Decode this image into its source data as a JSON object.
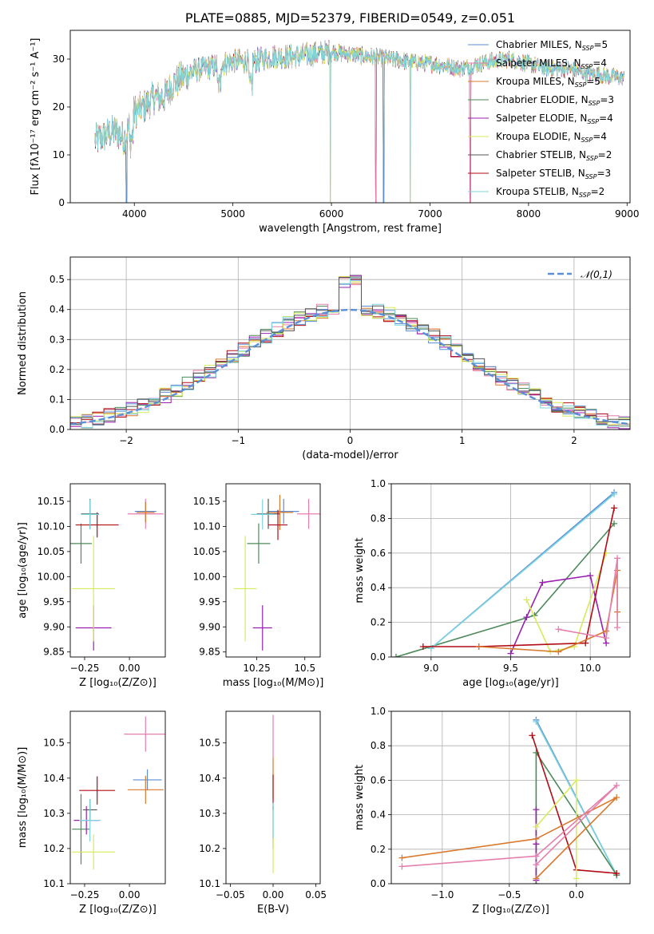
{
  "chart_data": [
    {
      "id": "spectrum",
      "type": "line",
      "title": "PLATE=0885, MJD=52379, FIBERID=0549, z=0.051",
      "xlabel": "wavelength [Angstrom, rest frame]",
      "ylabel": "Flux [fλ10⁻¹⁷ erg cm⁻² s⁻¹ A⁻¹]",
      "xlim": [
        3350,
        9030
      ],
      "ylim": [
        0,
        36
      ],
      "xticks": [
        4000,
        5000,
        6000,
        7000,
        8000,
        9000
      ],
      "yticks": [
        0,
        10,
        20,
        30
      ],
      "legend_position": "upper-right",
      "continuum_x": [
        3600,
        3700,
        3800,
        3900,
        4000,
        4100,
        4200,
        4300,
        4400,
        4600,
        4800,
        5000,
        5200,
        5400,
        5600,
        5800,
        6000,
        6200,
        6400,
        6600,
        6800,
        7000,
        7200,
        7300,
        7400,
        7600,
        7800,
        8000,
        8200,
        8400,
        8600,
        8800,
        8970
      ],
      "continuum_y": [
        13,
        14,
        15,
        13.5,
        19,
        20,
        22,
        22,
        25,
        27.5,
        28.5,
        29.5,
        29.5,
        30.5,
        30.5,
        31,
        31.5,
        31,
        30.5,
        30,
        29.5,
        29,
        28.5,
        28,
        28.5,
        29.5,
        30,
        29,
        28,
        28,
        27,
        26.5,
        26
      ],
      "dropouts_x": [
        3920,
        5990,
        6450,
        6530,
        6800,
        7410
      ],
      "series": [
        {
          "name": "Chabrier MILES, N_SSP=5",
          "color": "#5b8fd8"
        },
        {
          "name": "Salpeter MILES, N_SSP=4",
          "color": "#e57fae"
        },
        {
          "name": "Kroupa MILES, N_SSP=5",
          "color": "#d9792e"
        },
        {
          "name": "Chabrier ELODIE, N_SSP=3",
          "color": "#4d8a5a"
        },
        {
          "name": "Salpeter ELODIE, N_SSP=4",
          "color": "#9a1fb0"
        },
        {
          "name": "Kroupa ELODIE, N_SSP=4",
          "color": "#d8eb5a"
        },
        {
          "name": "Chabrier STELIB, N_SSP=2",
          "color": "#555555"
        },
        {
          "name": "Salpeter STELIB, N_SSP=3",
          "color": "#b00d16"
        },
        {
          "name": "Kroupa STELIB, N_SSP=2",
          "color": "#7cd4de"
        }
      ]
    },
    {
      "id": "residuals",
      "type": "histogram",
      "xlabel": "(data-model)/error",
      "ylabel": "Normed distribution",
      "xlim": [
        -2.5,
        2.5
      ],
      "ylim": [
        0,
        0.575
      ],
      "xticks": [
        -2,
        -1,
        0,
        1,
        2
      ],
      "yticks": [
        0.0,
        0.1,
        0.2,
        0.3,
        0.4,
        0.5
      ],
      "grid": true,
      "bin_width": 0.1,
      "reference": {
        "name": "𝒩(0,1)",
        "color": "#5b8fd8",
        "style": "dashed"
      },
      "legend_position": "upper-right"
    },
    {
      "id": "age-vs-Z",
      "type": "scatter",
      "xlabel": "Z [log₁₀(Z/Z⊙)]",
      "ylabel": "age  [log₁₀(age/yr)]",
      "xlim": [
        -0.33,
        0.2
      ],
      "ylim": [
        9.84,
        10.185
      ],
      "xticks": [
        -0.25,
        0.0
      ],
      "xticklabels": [
        "−0.25",
        "0.00"
      ],
      "yticks": [
        9.85,
        9.9,
        9.95,
        10.0,
        10.05,
        10.1,
        10.15
      ],
      "points": [
        {
          "c": 0,
          "x": 0.09,
          "y": 10.13,
          "ex": 0.06,
          "ey": 0.02
        },
        {
          "c": 1,
          "x": 0.09,
          "y": 10.125,
          "ex": 0.1,
          "ey": 0.03
        },
        {
          "c": 2,
          "x": 0.09,
          "y": 10.128,
          "ex": 0.05,
          "ey": 0.02
        },
        {
          "c": 3,
          "x": -0.27,
          "y": 10.066,
          "ex": 0.06,
          "ey": 0.04
        },
        {
          "c": 4,
          "x": -0.2,
          "y": 9.898,
          "ex": 0.1,
          "ey": 0.045
        },
        {
          "c": 5,
          "x": -0.2,
          "y": 9.976,
          "ex": 0.12,
          "ey": 0.105
        },
        {
          "c": 6,
          "x": -0.22,
          "y": 10.125,
          "ex": 0.05,
          "ey": 0.03
        },
        {
          "c": 7,
          "x": -0.18,
          "y": 10.103,
          "ex": 0.12,
          "ey": 0.025
        },
        {
          "c": 8,
          "x": -0.22,
          "y": 10.124,
          "ex": 0.05,
          "ey": 0.03
        }
      ]
    },
    {
      "id": "age-vs-mass",
      "type": "scatter",
      "xlabel": "mass [log₁₀(M/M⊙)]",
      "ylabel": "",
      "xlim": [
        10.09,
        10.58
      ],
      "ylim": [
        9.84,
        10.185
      ],
      "xticks": [
        10.25,
        10.5
      ],
      "yticks": [
        9.85,
        9.9,
        9.95,
        10.0,
        10.05,
        10.1,
        10.15
      ],
      "points": [
        {
          "c": 0,
          "x": 10.39,
          "y": 10.13,
          "ex": 0.08,
          "ey": 0.025
        },
        {
          "c": 1,
          "x": 10.52,
          "y": 10.125,
          "ex": 0.06,
          "ey": 0.03
        },
        {
          "c": 2,
          "x": 10.37,
          "y": 10.128,
          "ex": 0.07,
          "ey": 0.035
        },
        {
          "c": 3,
          "x": 10.26,
          "y": 10.066,
          "ex": 0.06,
          "ey": 0.04
        },
        {
          "c": 4,
          "x": 10.28,
          "y": 9.898,
          "ex": 0.05,
          "ey": 0.045
        },
        {
          "c": 5,
          "x": 10.19,
          "y": 9.976,
          "ex": 0.06,
          "ey": 0.105
        },
        {
          "c": 6,
          "x": 10.31,
          "y": 10.125,
          "ex": 0.06,
          "ey": 0.03
        },
        {
          "c": 7,
          "x": 10.36,
          "y": 10.103,
          "ex": 0.05,
          "ey": 0.03
        },
        {
          "c": 8,
          "x": 10.28,
          "y": 10.124,
          "ex": 0.06,
          "ey": 0.03
        }
      ]
    },
    {
      "id": "weight-vs-age",
      "type": "line",
      "xlabel": "age  [log₁₀(age/yr)]",
      "ylabel": "mass weight",
      "xlim": [
        8.75,
        10.25
      ],
      "ylim": [
        0,
        1
      ],
      "xticks": [
        9.0,
        9.5,
        10.0
      ],
      "xticklabels": [
        "9.0",
        "9.5",
        "10.0"
      ],
      "yticks": [
        0.0,
        0.2,
        0.4,
        0.6,
        0.8,
        1.0
      ],
      "grid": true,
      "series": [
        {
          "c": 3,
          "x": [
            8.78,
            9.65,
            10.15
          ],
          "y": [
            0.0,
            0.24,
            0.77
          ]
        },
        {
          "c": 0,
          "x": [
            9.0,
            10.15
          ],
          "y": [
            0.05,
            0.95
          ]
        },
        {
          "c": 8,
          "x": [
            9.0,
            10.15
          ],
          "y": [
            0.05,
            0.94
          ]
        },
        {
          "c": 4,
          "x": [
            9.5,
            9.6,
            9.7,
            10.0,
            10.1
          ],
          "y": [
            0.02,
            0.23,
            0.43,
            0.47,
            0.08
          ]
        },
        {
          "c": 5,
          "x": [
            9.6,
            9.75,
            9.9,
            10.1
          ],
          "y": [
            0.33,
            0.03,
            0.06,
            0.6
          ]
        },
        {
          "c": 7,
          "x": [
            8.95,
            9.3,
            9.97,
            10.15
          ],
          "y": [
            0.06,
            0.06,
            0.08,
            0.86
          ]
        },
        {
          "c": 2,
          "x": [
            9.3,
            9.8,
            10.1,
            10.17,
            10.17
          ],
          "y": [
            0.06,
            0.03,
            0.15,
            0.5,
            0.26
          ]
        },
        {
          "c": 1,
          "x": [
            9.8,
            10.1,
            10.17,
            10.17
          ],
          "y": [
            0.16,
            0.11,
            0.57,
            0.17
          ]
        }
      ]
    },
    {
      "id": "mass-vs-Z",
      "type": "scatter",
      "xlabel": "Z [log₁₀(Z/Z⊙)]",
      "ylabel": "mass [log₁₀(M/M⊙)]",
      "xlim": [
        -0.33,
        0.2
      ],
      "ylim": [
        10.1,
        10.59
      ],
      "xticks": [
        -0.25,
        0.0
      ],
      "xticklabels": [
        "−0.25",
        "0.00"
      ],
      "yticks": [
        10.1,
        10.2,
        10.3,
        10.4,
        10.5
      ],
      "points": [
        {
          "c": 0,
          "x": 0.1,
          "y": 10.395,
          "ex": 0.08,
          "ey": 0.03
        },
        {
          "c": 1,
          "x": 0.09,
          "y": 10.525,
          "ex": 0.12,
          "ey": 0.05
        },
        {
          "c": 2,
          "x": 0.09,
          "y": 10.367,
          "ex": 0.1,
          "ey": 0.04
        },
        {
          "c": 3,
          "x": -0.27,
          "y": 10.255,
          "ex": 0.05,
          "ey": 0.1
        },
        {
          "c": 4,
          "x": -0.24,
          "y": 10.28,
          "ex": 0.07,
          "ey": 0.04
        },
        {
          "c": 5,
          "x": -0.2,
          "y": 10.19,
          "ex": 0.12,
          "ey": 0.05
        },
        {
          "c": 6,
          "x": -0.22,
          "y": 10.31,
          "ex": 0.04,
          "ey": 0.03
        },
        {
          "c": 7,
          "x": -0.18,
          "y": 10.365,
          "ex": 0.1,
          "ey": 0.04
        },
        {
          "c": 8,
          "x": -0.22,
          "y": 10.28,
          "ex": 0.06,
          "ey": 0.06
        }
      ]
    },
    {
      "id": "mass-vs-ebv",
      "type": "scatter",
      "xlabel": "E(B-V)",
      "ylabel": "",
      "xlim": [
        -0.055,
        0.055
      ],
      "ylim": [
        10.1,
        10.59
      ],
      "xticks": [
        -0.05,
        0.0,
        0.05
      ],
      "xticklabels": [
        "−0.05",
        "0.00",
        "0.05"
      ],
      "yticks": [
        10.1,
        10.2,
        10.3,
        10.4,
        10.5
      ],
      "points": [
        {
          "c": 1,
          "x": 0.0,
          "y": 10.52,
          "ex": 0.0,
          "ey": 0.06
        },
        {
          "c": 2,
          "x": 0.0,
          "y": 10.4,
          "ex": 0.0,
          "ey": 0.06
        },
        {
          "c": 7,
          "x": 0.0,
          "y": 10.36,
          "ex": 0.0,
          "ey": 0.05
        },
        {
          "c": 3,
          "x": 0.0,
          "y": 10.26,
          "ex": 0.0,
          "ey": 0.06
        },
        {
          "c": 5,
          "x": 0.0,
          "y": 10.18,
          "ex": 0.0,
          "ey": 0.05
        },
        {
          "c": 8,
          "x": 0.0,
          "y": 10.28,
          "ex": 0.0,
          "ey": 0.05
        }
      ]
    },
    {
      "id": "weight-vs-Z",
      "type": "line",
      "xlabel": "Z [log₁₀(Z/Z⊙)]",
      "ylabel": "mass weight",
      "xlim": [
        -1.38,
        0.4
      ],
      "ylim": [
        0,
        1
      ],
      "xticks": [
        -1.0,
        -0.5,
        0.0
      ],
      "xticklabels": [
        "−1.0",
        "−0.5",
        "0.0"
      ],
      "yticks": [
        0.0,
        0.2,
        0.4,
        0.6,
        0.8,
        1.0
      ],
      "grid": true,
      "series": [
        {
          "c": 0,
          "x": [
            -0.3,
            0.3
          ],
          "y": [
            0.95,
            0.05
          ]
        },
        {
          "c": 8,
          "x": [
            -0.3,
            0.3
          ],
          "y": [
            0.94,
            0.05
          ]
        },
        {
          "c": 3,
          "x": [
            -0.3,
            -0.3,
            0.3
          ],
          "y": [
            0.0,
            0.76,
            0.05
          ]
        },
        {
          "c": 7,
          "x": [
            -0.33,
            0.0,
            0.3
          ],
          "y": [
            0.86,
            0.08,
            0.06
          ]
        },
        {
          "c": 4,
          "x": [
            -0.3,
            -0.3,
            -0.3
          ],
          "y": [
            0.02,
            0.43,
            0.23
          ]
        },
        {
          "c": 5,
          "x": [
            -0.3,
            0.0,
            0.0
          ],
          "y": [
            0.33,
            0.6,
            0.03
          ]
        },
        {
          "c": 2,
          "x": [
            -1.3,
            -0.3,
            0.3,
            -0.3
          ],
          "y": [
            0.15,
            0.26,
            0.5,
            0.03
          ]
        },
        {
          "c": 1,
          "x": [
            -1.3,
            -0.3,
            0.3,
            -0.3
          ],
          "y": [
            0.1,
            0.16,
            0.57,
            0.11
          ]
        }
      ]
    }
  ]
}
